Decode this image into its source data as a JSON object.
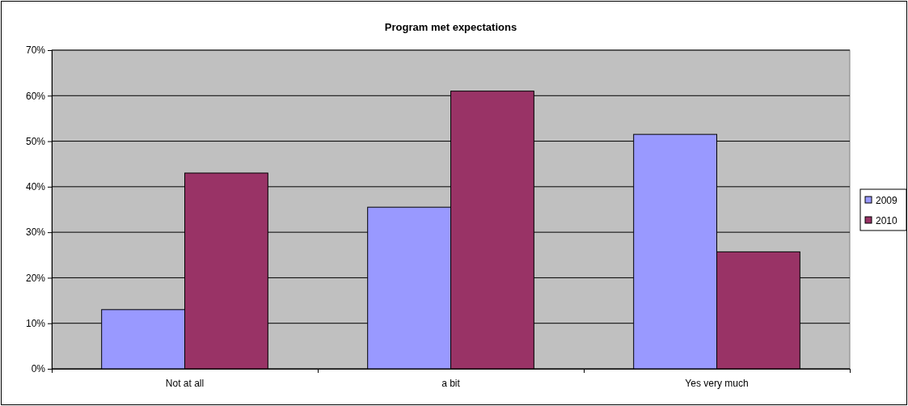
{
  "chart_data": {
    "type": "bar",
    "title": "Program met expectations",
    "categories": [
      "Not at all",
      "a bit",
      "Yes very much"
    ],
    "series": [
      {
        "name": "2009",
        "color": "#9999ff",
        "values": [
          13,
          35.5,
          51.5
        ]
      },
      {
        "name": "2010",
        "color": "#993366",
        "values": [
          43,
          61,
          25.7
        ]
      }
    ],
    "ylim": [
      0,
      70
    ],
    "yticks": [
      {
        "value": 0,
        "label": "0%"
      },
      {
        "value": 10,
        "label": "10%"
      },
      {
        "value": 20,
        "label": "20%"
      },
      {
        "value": 30,
        "label": "30%"
      },
      {
        "value": 40,
        "label": "40%"
      },
      {
        "value": 50,
        "label": "50%"
      },
      {
        "value": 60,
        "label": "60%"
      },
      {
        "value": 70,
        "label": "70%"
      }
    ],
    "grid": "y",
    "legend": "right"
  }
}
